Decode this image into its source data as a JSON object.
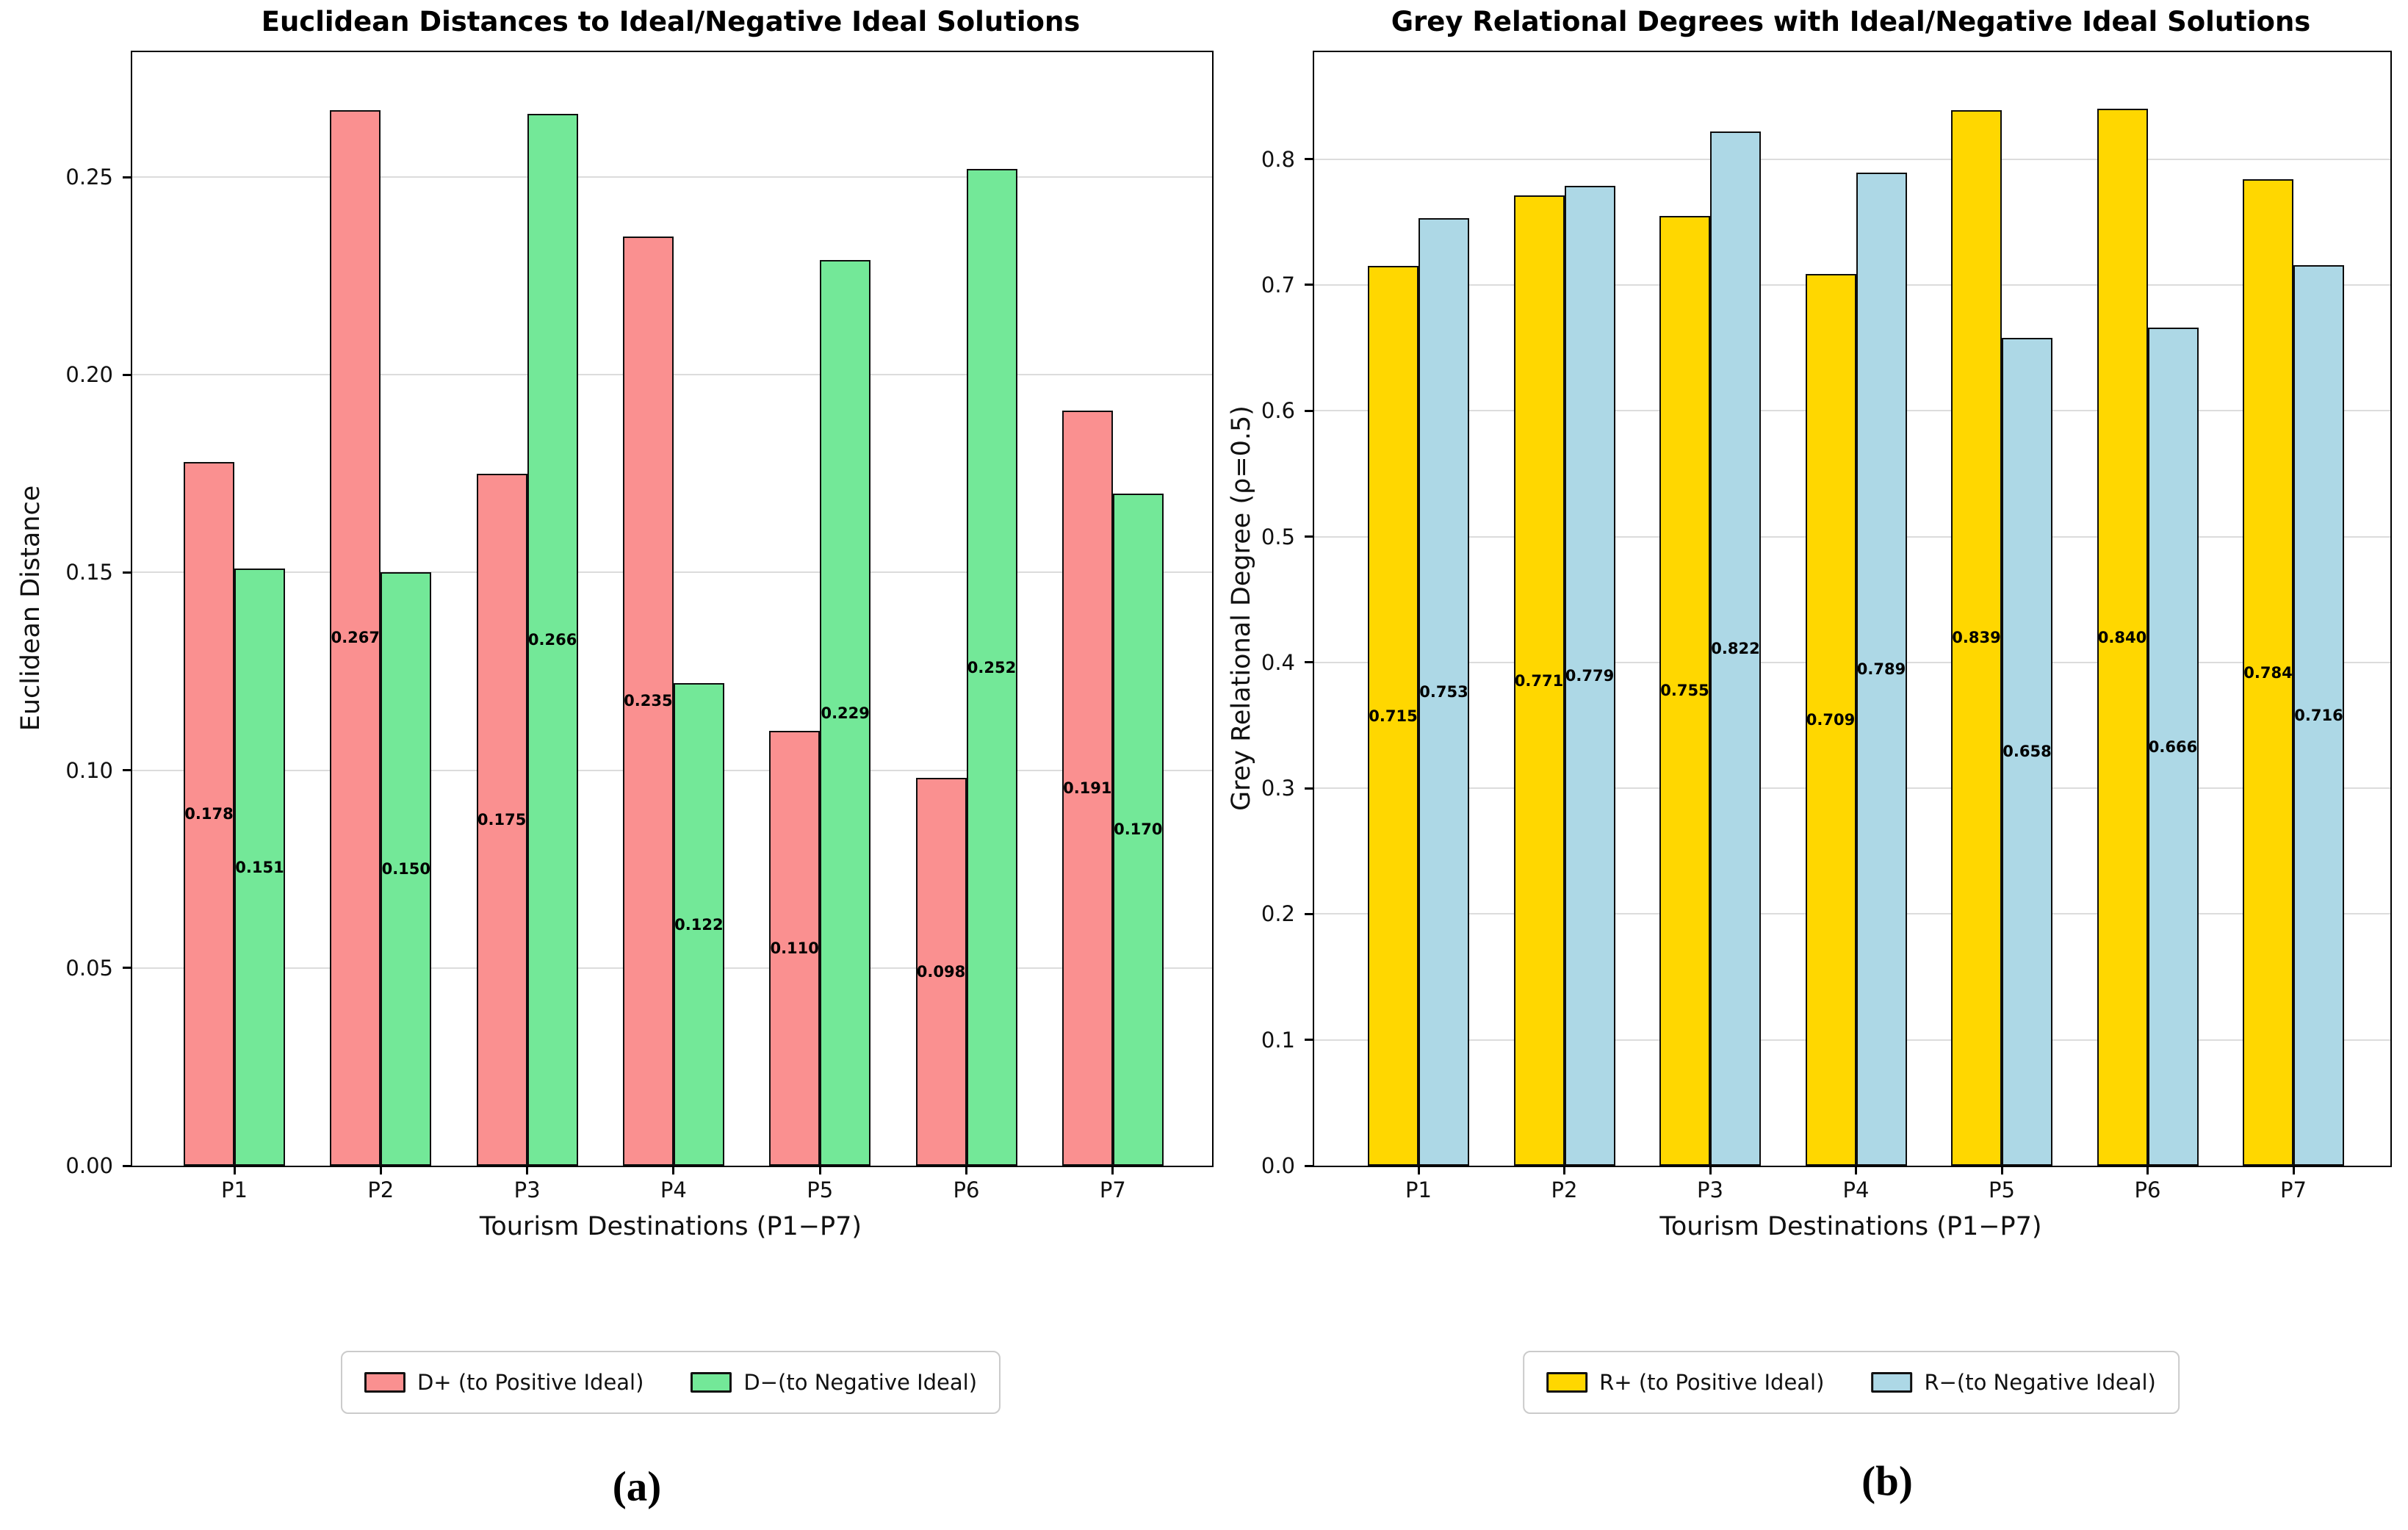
{
  "figure": {
    "captions": [
      "(a)",
      "(b)"
    ]
  },
  "chart_data": [
    {
      "id": "a",
      "type": "bar",
      "title": "Euclidean Distances to Ideal/Negative Ideal Solutions",
      "xlabel": "Tourism Destinations (P1−P7)",
      "ylabel": "Euclidean Distance",
      "categories": [
        "P1",
        "P2",
        "P3",
        "P4",
        "P5",
        "P6",
        "P7"
      ],
      "series": [
        {
          "name": "D+ (to Positive Ideal)",
          "color": "#FA9090",
          "values": [
            0.178,
            0.267,
            0.175,
            0.235,
            0.11,
            0.098,
            0.191
          ],
          "labels": [
            "0.178",
            "0.267",
            "0.175",
            "0.235",
            "0.110",
            "0.098",
            "0.191"
          ]
        },
        {
          "name": "D−(to Negative Ideal)",
          "color": "#73E898",
          "values": [
            0.151,
            0.15,
            0.266,
            0.122,
            0.229,
            0.252,
            0.17
          ],
          "labels": [
            "0.151",
            "0.150",
            "0.266",
            "0.122",
            "0.229",
            "0.252",
            "0.170"
          ]
        }
      ],
      "ylim": [
        0,
        0.2816
      ],
      "ytick_values": [
        0,
        0.05,
        0.1,
        0.15,
        0.2,
        0.25
      ],
      "ytick_labels": [
        "0.00",
        "0.05",
        "0.10",
        "0.15",
        "0.20",
        "0.25"
      ],
      "grid": "horizontal",
      "gridline_color": "#dcdcdc",
      "bar_edge_color": "#0d0d0d",
      "value_label_position": "middle",
      "legend_position": "bottom"
    },
    {
      "id": "b",
      "type": "bar",
      "title": "Grey Relational Degrees with Ideal/Negative Ideal Solutions",
      "xlabel": "Tourism Destinations (P1−P7)",
      "ylabel": "Grey Relational Degree (ρ=0.5)",
      "categories": [
        "P1",
        "P2",
        "P3",
        "P4",
        "P5",
        "P6",
        "P7"
      ],
      "series": [
        {
          "name": "R+ (to Positive Ideal)",
          "color": "#FFD700",
          "values": [
            0.715,
            0.771,
            0.755,
            0.709,
            0.839,
            0.84,
            0.784
          ],
          "labels": [
            "0.715",
            "0.771",
            "0.755",
            "0.709",
            "0.839",
            "0.840",
            "0.784"
          ]
        },
        {
          "name": "R−(to Negative Ideal)",
          "color": "#ADD8E6",
          "values": [
            0.753,
            0.779,
            0.822,
            0.789,
            0.658,
            0.666,
            0.716
          ],
          "labels": [
            "0.753",
            "0.779",
            "0.822",
            "0.789",
            "0.658",
            "0.666",
            "0.716"
          ]
        }
      ],
      "ylim": [
        0,
        0.885
      ],
      "ytick_values": [
        0,
        0.1,
        0.2,
        0.3,
        0.4,
        0.5,
        0.6,
        0.7,
        0.8
      ],
      "ytick_labels": [
        "0.0",
        "0.1",
        "0.2",
        "0.3",
        "0.4",
        "0.5",
        "0.6",
        "0.7",
        "0.8"
      ],
      "grid": "horizontal",
      "gridline_color": "#dcdcdc",
      "bar_edge_color": "#0d0d0d",
      "value_label_position": "middle",
      "legend_position": "bottom"
    }
  ]
}
